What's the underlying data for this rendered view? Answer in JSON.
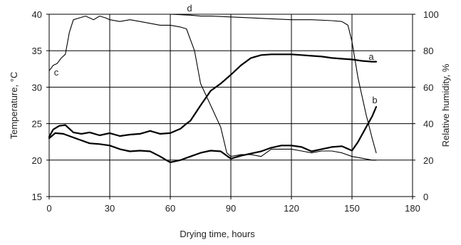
{
  "chart_data": {
    "type": "line",
    "xlabel": "Drying time, hours",
    "ylabel_left": "Temperature, °C",
    "ylabel_right": "Relative humidity, %",
    "xlim": [
      0,
      180
    ],
    "ylim_left": [
      15,
      40
    ],
    "ylim_right": [
      0,
      100
    ],
    "xticks": [
      "0",
      "30",
      "60",
      "90",
      "120",
      "150",
      "180"
    ],
    "yticks_left": [
      "15",
      "20",
      "25",
      "30",
      "35",
      "40"
    ],
    "yticks_right": [
      "0",
      "20",
      "40",
      "60",
      "80",
      "100"
    ],
    "grid": true,
    "series": [
      {
        "name": "a",
        "axis": "left",
        "weight": "thick",
        "x": [
          0,
          2,
          5,
          8,
          12,
          16,
          20,
          25,
          30,
          35,
          40,
          45,
          50,
          55,
          60,
          65,
          68,
          70,
          75,
          80,
          85,
          90,
          95,
          100,
          105,
          110,
          115,
          120,
          125,
          130,
          135,
          140,
          145,
          150,
          155,
          160,
          162
        ],
        "y": [
          23.2,
          24.2,
          24.7,
          24.8,
          23.8,
          23.6,
          23.8,
          23.4,
          23.7,
          23.3,
          23.5,
          23.6,
          24.0,
          23.6,
          23.7,
          24.3,
          25.0,
          25.4,
          27.5,
          29.5,
          30.5,
          31.7,
          33.0,
          34.0,
          34.4,
          34.5,
          34.5,
          34.5,
          34.4,
          34.3,
          34.2,
          34.0,
          33.9,
          33.8,
          33.6,
          33.5,
          33.5
        ]
      },
      {
        "name": "b",
        "axis": "left",
        "weight": "thick",
        "x": [
          0,
          3,
          7,
          10,
          15,
          20,
          25,
          30,
          35,
          40,
          45,
          50,
          55,
          58,
          60,
          65,
          70,
          75,
          80,
          85,
          90,
          95,
          100,
          105,
          110,
          115,
          120,
          125,
          130,
          135,
          140,
          145,
          150,
          153,
          157,
          160,
          162
        ],
        "y": [
          23.0,
          23.7,
          23.6,
          23.3,
          22.8,
          22.3,
          22.2,
          22.0,
          21.5,
          21.2,
          21.3,
          21.2,
          20.5,
          20.0,
          19.7,
          20.0,
          20.5,
          21.0,
          21.3,
          21.2,
          20.2,
          20.6,
          20.9,
          21.2,
          21.7,
          22.0,
          22.0,
          21.8,
          21.2,
          21.5,
          21.8,
          21.9,
          21.3,
          22.5,
          24.5,
          26.0,
          27.3
        ]
      },
      {
        "name": "c",
        "axis": "right",
        "weight": "thin",
        "x": [
          0,
          2,
          4,
          6,
          8,
          10,
          12,
          15,
          18,
          20,
          22,
          25,
          28,
          30,
          35,
          40,
          45,
          50,
          55,
          60,
          65,
          68,
          70,
          72,
          75,
          80,
          85,
          88,
          90,
          95,
          100,
          105,
          110,
          115,
          120,
          125,
          130,
          135,
          140,
          145,
          150,
          155,
          160,
          162
        ],
        "y": [
          69,
          72,
          73,
          76,
          78,
          90,
          97,
          98,
          99,
          98,
          97,
          99,
          98,
          97,
          96,
          97,
          96,
          95,
          94,
          94,
          93,
          92,
          86,
          80,
          62,
          50,
          38,
          24,
          22,
          23,
          23,
          22,
          26,
          26,
          26,
          25,
          24,
          25,
          25,
          24,
          22,
          21,
          20,
          20
        ]
      },
      {
        "name": "d",
        "axis": "right",
        "weight": "thin",
        "x": [
          0,
          20,
          40,
          60,
          70,
          75,
          80,
          90,
          100,
          110,
          120,
          130,
          140,
          145,
          148,
          150,
          153,
          157,
          160,
          162
        ],
        "y": [
          100,
          100,
          100,
          100,
          99.5,
          99,
          99,
          98.5,
          98,
          97.5,
          97,
          97,
          96.5,
          96,
          94,
          85,
          65,
          45,
          32,
          24
        ]
      }
    ]
  }
}
